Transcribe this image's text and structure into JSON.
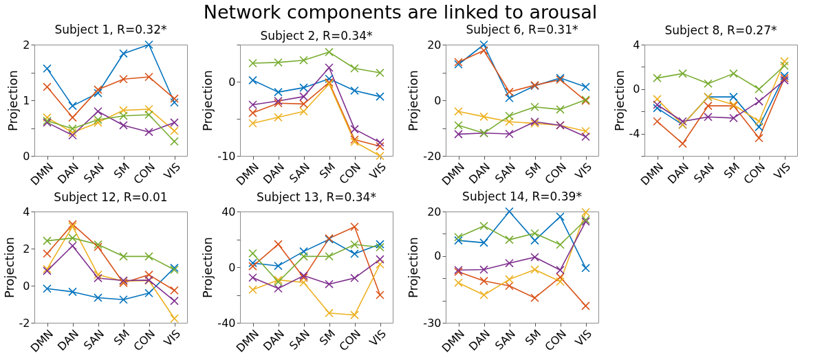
{
  "chart_data": [
    {
      "type": "other",
      "title": "Network components are linked to arousal"
    },
    {
      "type": "line",
      "title": "Subject 1, R=0.32*",
      "ylabel": "Projection",
      "categories": [
        "DMN",
        "DAN",
        "SAN",
        "SM",
        "CON",
        "VIS"
      ],
      "ylim": [
        0,
        2
      ],
      "yticks": [
        0,
        {
          "value": 0.5,
          "label": null
        },
        1,
        {
          "value": 1.5,
          "label": null
        },
        2
      ],
      "marker": "cross",
      "series": [
        {
          "color": "#0072bd",
          "values": [
            1.57,
            0.9,
            1.13,
            1.84,
            2.0,
            0.96
          ]
        },
        {
          "color": "#d95319",
          "values": [
            1.24,
            0.69,
            1.19,
            1.38,
            1.42,
            1.03
          ]
        },
        {
          "color": "#edb120",
          "values": [
            0.69,
            0.42,
            0.6,
            0.82,
            0.84,
            0.45
          ]
        },
        {
          "color": "#7e2f8e",
          "values": [
            0.6,
            0.37,
            0.8,
            0.55,
            0.43,
            0.6
          ]
        },
        {
          "color": "#77ac30",
          "values": [
            0.63,
            0.49,
            0.65,
            0.72,
            0.74,
            0.26
          ]
        }
      ]
    },
    {
      "type": "line",
      "title": "Subject 2, R=0.34*",
      "ylabel": "Projection",
      "categories": [
        "DMN",
        "DAN",
        "SAN",
        "SM",
        "CON",
        "VIS"
      ],
      "ylim": [
        -10,
        5
      ],
      "yticks": [
        -10,
        {
          "value": -5,
          "label": null
        },
        0,
        {
          "value": 5,
          "label": null
        }
      ],
      "marker": "cross",
      "series": [
        {
          "color": "#0072bd",
          "values": [
            0.2,
            -1.4,
            -0.8,
            0.4,
            -1.2,
            -2.0
          ]
        },
        {
          "color": "#d95319",
          "values": [
            -4.2,
            -2.9,
            -3.0,
            -0.1,
            -7.8,
            -8.7
          ]
        },
        {
          "color": "#edb120",
          "values": [
            -5.6,
            -4.8,
            -4.0,
            -0.3,
            -8.1,
            -10.0
          ]
        },
        {
          "color": "#7e2f8e",
          "values": [
            -3.1,
            -2.6,
            -2.0,
            1.9,
            -6.4,
            -8.2
          ]
        },
        {
          "color": "#77ac30",
          "values": [
            2.5,
            2.6,
            2.9,
            4.0,
            1.8,
            1.2
          ]
        }
      ]
    },
    {
      "type": "line",
      "title": "Subject 6, R=0.31*",
      "ylabel": "Projection",
      "categories": [
        "DMN",
        "DAN",
        "SAN",
        "SM",
        "CON",
        "VIS"
      ],
      "ylim": [
        -20,
        20
      ],
      "yticks": [
        -20,
        {
          "value": -10,
          "label": null
        },
        0,
        {
          "value": 10,
          "label": null
        },
        20
      ],
      "marker": "cross",
      "series": [
        {
          "color": "#0072bd",
          "values": [
            12.9,
            20,
            0.8,
            5.2,
            8.0,
            4.8
          ]
        },
        {
          "color": "#d95319",
          "values": [
            13.7,
            17.9,
            3.0,
            5.4,
            7.4,
            -0.2
          ]
        },
        {
          "color": "#edb120",
          "values": [
            -4.0,
            -5.9,
            -7.7,
            -8.3,
            -9.0,
            -11.1
          ]
        },
        {
          "color": "#7e2f8e",
          "values": [
            -12.2,
            -11.8,
            -12.1,
            -7.7,
            -9.0,
            -13.1
          ]
        },
        {
          "color": "#77ac30",
          "values": [
            -9.0,
            -11.8,
            -5.6,
            -2.4,
            -3.3,
            0.2
          ]
        }
      ]
    },
    {
      "type": "line",
      "title": "Subject 8, R=0.27*",
      "ylabel": "Projection",
      "categories": [
        "DMN",
        "DAN",
        "SAN",
        "SM",
        "CON",
        "VIS"
      ],
      "ylim": [
        -6,
        4
      ],
      "yticks": [
        {
          "value": -6,
          "label": null
        },
        -4,
        {
          "value": -2,
          "label": null
        },
        0,
        {
          "value": 2,
          "label": null
        },
        4
      ],
      "marker": "cross",
      "series": [
        {
          "color": "#0072bd",
          "values": [
            -1.7,
            -3.2,
            -0.7,
            -0.7,
            -3.4,
            1.2
          ]
        },
        {
          "color": "#d95319",
          "values": [
            -2.9,
            -4.9,
            -1.5,
            -1.5,
            -4.4,
            1.0
          ]
        },
        {
          "color": "#edb120",
          "values": [
            -0.9,
            -3.2,
            -0.7,
            -1.4,
            -2.9,
            2.5
          ]
        },
        {
          "color": "#7e2f8e",
          "values": [
            -1.4,
            -2.9,
            -2.5,
            -2.6,
            -1.1,
            0.8
          ]
        },
        {
          "color": "#77ac30",
          "values": [
            1.0,
            1.4,
            0.5,
            1.4,
            0.0,
            2.1
          ]
        }
      ]
    },
    {
      "type": "line",
      "title": "Subject 12, R=0.01",
      "ylabel": "Projection",
      "categories": [
        "DMN",
        "DAN",
        "SAN",
        "SM",
        "CON",
        "VIS"
      ],
      "ylim": [
        -2,
        4
      ],
      "yticks": [
        -2,
        0,
        2,
        4
      ],
      "marker": "cross",
      "series": [
        {
          "color": "#0072bd",
          "values": [
            -0.16,
            -0.33,
            -0.65,
            -0.75,
            -0.4,
            0.96
          ]
        },
        {
          "color": "#d95319",
          "values": [
            1.73,
            3.31,
            2.09,
            0.15,
            0.59,
            -0.25
          ]
        },
        {
          "color": "#edb120",
          "values": [
            0.9,
            3.2,
            0.59,
            0.24,
            0.28,
            -1.77
          ]
        },
        {
          "color": "#7e2f8e",
          "values": [
            0.8,
            2.15,
            0.41,
            0.28,
            0.3,
            -0.82
          ]
        },
        {
          "color": "#77ac30",
          "values": [
            2.42,
            2.57,
            2.22,
            1.58,
            1.58,
            0.86
          ]
        }
      ]
    },
    {
      "type": "line",
      "title": "Subject 13, R=0.34*",
      "ylabel": "Projection",
      "categories": [
        "DMN",
        "DAN",
        "SAN",
        "SM",
        "CON",
        "VIS"
      ],
      "ylim": [
        -40,
        40
      ],
      "yticks": [
        -40,
        {
          "value": -20,
          "label": null
        },
        0,
        {
          "value": 20,
          "label": null
        },
        40
      ],
      "marker": "cross",
      "series": [
        {
          "color": "#0072bd",
          "values": [
            3,
            0.9,
            11.3,
            20,
            9.6,
            16.5
          ]
        },
        {
          "color": "#d95319",
          "values": [
            0.7,
            16.5,
            -7.5,
            20.7,
            29,
            -20
          ]
        },
        {
          "color": "#edb120",
          "values": [
            -16.2,
            -9.2,
            -11,
            -33,
            -34.4,
            2.1
          ]
        },
        {
          "color": "#7e2f8e",
          "values": [
            -7.5,
            -15.3,
            -6.1,
            -12.2,
            -7.8,
            5.6
          ]
        },
        {
          "color": "#77ac30",
          "values": [
            9.9,
            -10.6,
            7.7,
            7.8,
            16.3,
            14.3
          ]
        }
      ]
    },
    {
      "type": "line",
      "title": "Subject 14, R=0.39*",
      "ylabel": "Projection",
      "categories": [
        "DMN",
        "DAN",
        "SAN",
        "SM",
        "CON",
        "VIS"
      ],
      "ylim": [
        -30,
        20
      ],
      "yticks": [
        -30,
        {
          "value": -20,
          "label": null
        },
        {
          "value": -10,
          "label": null
        },
        0,
        {
          "value": 10,
          "label": null
        },
        20
      ],
      "marker": "cross",
      "series": [
        {
          "color": "#0072bd",
          "values": [
            7.0,
            6.0,
            20,
            7.0,
            17.7,
            -5.4
          ]
        },
        {
          "color": "#d95319",
          "values": [
            -7.1,
            -11.2,
            -13.4,
            -18.8,
            -9.5,
            -22.4
          ]
        },
        {
          "color": "#edb120",
          "values": [
            -12.0,
            -17.5,
            -10.5,
            -6.1,
            -11.5,
            19.7
          ]
        },
        {
          "color": "#7e2f8e",
          "values": [
            -6.3,
            -6.1,
            -3.2,
            -0.5,
            -6.3,
            15.5
          ]
        },
        {
          "color": "#77ac30",
          "values": [
            8.5,
            13.5,
            7.3,
            10.2,
            5.1,
            16.3
          ]
        }
      ]
    }
  ]
}
